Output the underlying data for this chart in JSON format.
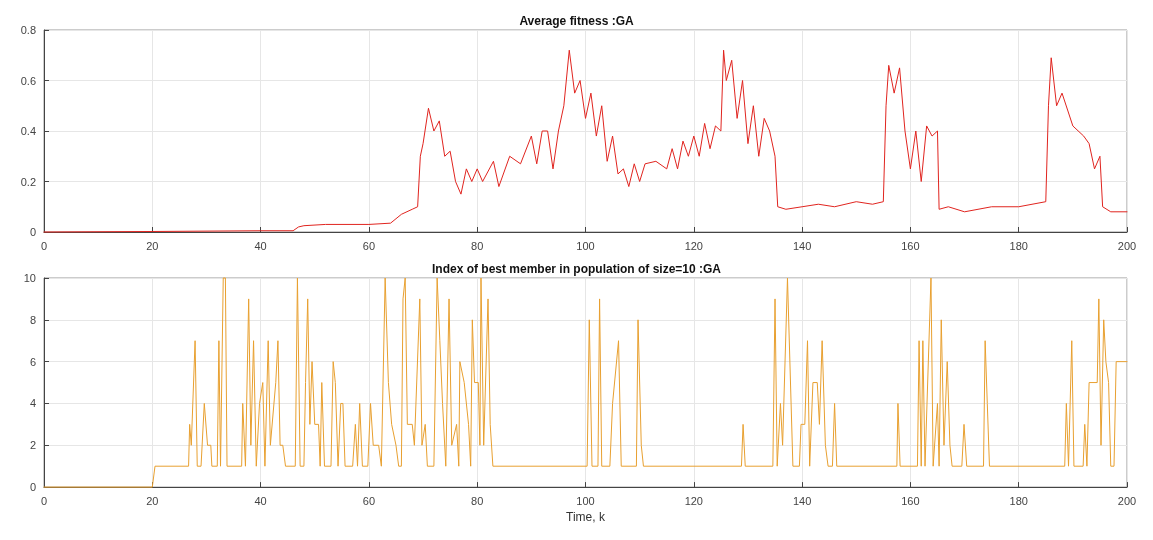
{
  "chart_data": [
    {
      "type": "line",
      "title": "Average fitness :GA",
      "xlim": [
        0,
        200
      ],
      "xticks": [
        0,
        20,
        40,
        60,
        80,
        100,
        120,
        140,
        160,
        180,
        200
      ],
      "ylim": [
        0,
        0.8
      ],
      "yticks": [
        0,
        0.2,
        0.4,
        0.6,
        0.8
      ],
      "grid": true,
      "marker": "none",
      "line_style": "solid",
      "series": [
        {
          "color": "#e0241f",
          "x": [
            0,
            20,
            40,
            46,
            47,
            48,
            52,
            60,
            64,
            66,
            68,
            69,
            69.5,
            70,
            71,
            72,
            73,
            74,
            75,
            76,
            77,
            78,
            79,
            80,
            81,
            83,
            84,
            86,
            88,
            90,
            91,
            92,
            93,
            94,
            95,
            96,
            97,
            98,
            99,
            100,
            101,
            102,
            103,
            104,
            105,
            106,
            107,
            108,
            109,
            110,
            111,
            113,
            115,
            116,
            117,
            118,
            119,
            120,
            121,
            122,
            123,
            124,
            125,
            125.5,
            126,
            127,
            128,
            129,
            130,
            131,
            132,
            133,
            134,
            135,
            135.5,
            137,
            140,
            143,
            146,
            150,
            153,
            155,
            155.5,
            156,
            157,
            158,
            159,
            160,
            161,
            162,
            163,
            164,
            165,
            165.3,
            167,
            170,
            175,
            180,
            185,
            185.5,
            186,
            187,
            188,
            190,
            192,
            193,
            194,
            195,
            195.5,
            197,
            200
          ],
          "values": [
            0,
            0.002,
            0.005,
            0.005,
            0.02,
            0.025,
            0.03,
            0.03,
            0.035,
            0.07,
            0.09,
            0.1,
            0.3,
            0.35,
            0.49,
            0.4,
            0.44,
            0.3,
            0.32,
            0.2,
            0.15,
            0.25,
            0.2,
            0.25,
            0.2,
            0.28,
            0.18,
            0.3,
            0.27,
            0.38,
            0.27,
            0.4,
            0.4,
            0.25,
            0.4,
            0.5,
            0.72,
            0.55,
            0.6,
            0.45,
            0.55,
            0.38,
            0.5,
            0.28,
            0.38,
            0.23,
            0.25,
            0.18,
            0.27,
            0.2,
            0.27,
            0.28,
            0.25,
            0.33,
            0.25,
            0.36,
            0.3,
            0.38,
            0.3,
            0.43,
            0.33,
            0.42,
            0.4,
            0.72,
            0.6,
            0.68,
            0.45,
            0.6,
            0.35,
            0.5,
            0.3,
            0.45,
            0.4,
            0.3,
            0.1,
            0.09,
            0.1,
            0.11,
            0.1,
            0.12,
            0.11,
            0.12,
            0.5,
            0.66,
            0.55,
            0.65,
            0.4,
            0.25,
            0.4,
            0.2,
            0.42,
            0.38,
            0.4,
            0.09,
            0.1,
            0.08,
            0.1,
            0.1,
            0.12,
            0.5,
            0.69,
            0.5,
            0.55,
            0.42,
            0.38,
            0.35,
            0.25,
            0.3,
            0.1,
            0.08,
            0.08
          ]
        }
      ]
    },
    {
      "type": "line",
      "title": "Index of best member in population of size=10 :GA",
      "xlabel": "Time, k",
      "xlim": [
        0,
        200
      ],
      "xticks": [
        0,
        20,
        40,
        60,
        80,
        100,
        120,
        140,
        160,
        180,
        200
      ],
      "ylim": [
        0,
        10
      ],
      "yticks": [
        0,
        2,
        4,
        6,
        8,
        10
      ],
      "grid": true,
      "marker": "none",
      "line_style": "solid",
      "series": [
        {
          "color": "#e8a030",
          "x": [
            0,
            20,
            20.5,
            26.7,
            26.9,
            27.2,
            27.9,
            28.3,
            29,
            29.6,
            30.2,
            30.8,
            31,
            32,
            32.3,
            32.6,
            33.1,
            33.5,
            33.8,
            36.5,
            36.7,
            37.2,
            37.8,
            38.2,
            38.7,
            39.2,
            39.8,
            40.4,
            40.8,
            41.4,
            41.8,
            42.8,
            43.2,
            43.6,
            44.1,
            44.6,
            46.4,
            46.8,
            47.3,
            48,
            48.3,
            48.7,
            49.1,
            49.5,
            50,
            50.7,
            51,
            51.3,
            51.8,
            53,
            53.4,
            53.8,
            54.3,
            54.8,
            55.2,
            55.6,
            57,
            57.5,
            57.9,
            58.3,
            58.8,
            59.8,
            60.3,
            60.8,
            61.8,
            62.3,
            63,
            63.6,
            64.2,
            65,
            65.5,
            66,
            66.3,
            66.7,
            67.1,
            68,
            68.4,
            69.4,
            69.8,
            70.4,
            70.8,
            72,
            72.6,
            73.1,
            73.6,
            74.2,
            74.8,
            75.3,
            76.2,
            76.6,
            76.8,
            77.6,
            78.4,
            78.8,
            79.1,
            79.5,
            80.2,
            80.5,
            80.7,
            81.2,
            82,
            82.4,
            82.9,
            100.3,
            100.7,
            101.2,
            102.3,
            102.6,
            103,
            104.5,
            105,
            106.1,
            106.6,
            109.4,
            109.7,
            110.3,
            110.7,
            128.8,
            129.1,
            129.5,
            134.6,
            135,
            135.4,
            136,
            136.4,
            137.3,
            138.3,
            139.5,
            139.8,
            140.5,
            141,
            141.4,
            142,
            142.8,
            143.2,
            143.7,
            144.3,
            144.8,
            145.6,
            146,
            146.4,
            157.5,
            157.7,
            158.1,
            161.3,
            161.6,
            162,
            162.3,
            162.7,
            163.8,
            164.2,
            165,
            165.3,
            165.7,
            166.2,
            166.8,
            167.3,
            167.7,
            169.5,
            169.9,
            170.4,
            173.5,
            173.8,
            174.2,
            174.6,
            188.5,
            188.8,
            189.2,
            189.8,
            190.2,
            191.9,
            192.2,
            192.6,
            193,
            194.5,
            194.8,
            195.2,
            195.7,
            196.1,
            196.6,
            197,
            197.6,
            198,
            200
          ],
          "values": [
            0,
            0,
            1,
            1,
            3,
            2,
            7,
            1,
            1,
            4,
            2,
            2,
            1,
            1,
            7,
            1,
            10,
            10,
            1,
            1,
            4,
            1,
            9,
            2,
            7,
            1,
            4,
            5,
            1,
            7,
            2,
            5,
            7,
            2,
            2,
            1,
            1,
            10,
            1,
            1,
            5,
            9,
            3,
            6,
            3,
            3,
            1,
            5,
            1,
            1,
            6,
            5,
            1,
            4,
            4,
            1,
            1,
            3,
            1,
            4,
            1,
            1,
            4,
            2,
            2,
            1,
            10,
            5,
            3,
            2,
            1,
            1,
            9,
            10,
            3,
            3,
            2,
            9,
            2,
            3,
            1,
            1,
            10,
            7,
            4,
            1,
            9,
            2,
            3,
            1,
            6,
            5,
            3,
            1,
            8,
            5,
            5,
            2,
            10,
            2,
            9,
            3,
            1,
            1,
            8,
            1,
            1,
            9,
            1,
            1,
            4,
            7,
            1,
            1,
            8,
            2,
            1,
            1,
            3,
            1,
            1,
            9,
            1,
            4,
            2,
            10,
            1,
            1,
            3,
            3,
            7,
            1,
            5,
            5,
            3,
            7,
            2,
            1,
            1,
            4,
            1,
            1,
            4,
            1,
            1,
            7,
            1,
            7,
            1,
            10,
            1,
            4,
            1,
            8,
            2,
            6,
            2,
            1,
            1,
            3,
            1,
            1,
            7,
            4,
            1,
            1,
            4,
            1,
            7,
            1,
            1,
            3,
            1,
            5,
            5,
            9,
            2,
            8,
            6,
            5,
            1,
            1,
            6,
            6
          ]
        }
      ]
    }
  ]
}
